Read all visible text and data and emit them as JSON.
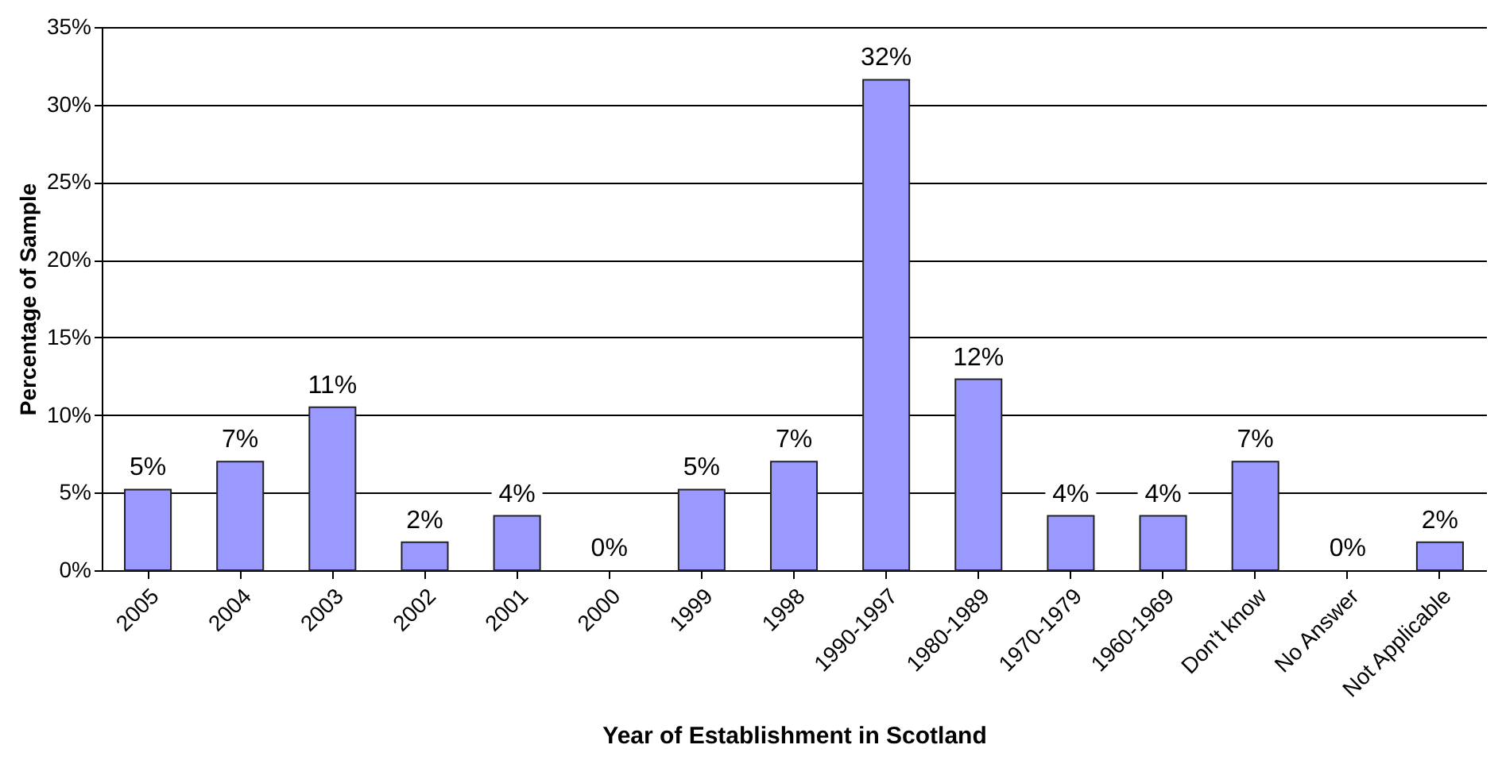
{
  "chart_data": {
    "type": "bar",
    "xlabel": "Year of Establishment in Scotland",
    "ylabel": "Percentage of Sample",
    "categories": [
      "2005",
      "2004",
      "2003",
      "2002",
      "2001",
      "2000",
      "1999",
      "1998",
      "1990-1997",
      "1980-1989",
      "1970-1979",
      "1960-1969",
      "Don't know",
      "No Answer",
      "Not Applicable"
    ],
    "values": [
      5.2,
      7.0,
      10.5,
      1.8,
      3.5,
      0,
      5.2,
      7.0,
      31.6,
      12.3,
      3.5,
      3.5,
      7.0,
      0,
      1.8
    ],
    "value_labels": [
      "5%",
      "7%",
      "11%",
      "2%",
      "4%",
      "0%",
      "5%",
      "7%",
      "32%",
      "12%",
      "4%",
      "4%",
      "7%",
      "0%",
      "2%"
    ],
    "color": "#9999ff",
    "ylim": [
      0,
      35
    ],
    "yticks": [
      {
        "value": 0,
        "label": "0%"
      },
      {
        "value": 5,
        "label": "5%"
      },
      {
        "value": 10,
        "label": "10%"
      },
      {
        "value": 15,
        "label": "15%"
      },
      {
        "value": 20,
        "label": "20%"
      },
      {
        "value": 25,
        "label": "25%"
      },
      {
        "value": 30,
        "label": "30%"
      },
      {
        "value": 35,
        "label": "35%"
      }
    ],
    "grid": "y"
  }
}
